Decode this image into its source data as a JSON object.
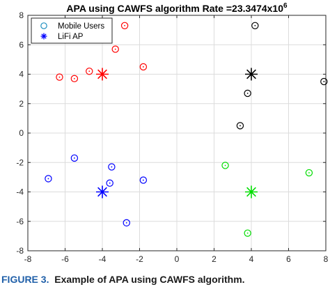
{
  "chart_data": {
    "type": "scatter",
    "title": "APA using CAWFS algorithm Rate =23.3474x10",
    "title_superscript": "6",
    "xlabel": "",
    "ylabel": "",
    "xlim": [
      -8,
      8
    ],
    "ylim": [
      -8,
      8
    ],
    "xticks": [
      -8,
      -6,
      -4,
      -2,
      0,
      2,
      4,
      6,
      8
    ],
    "yticks": [
      -8,
      -6,
      -4,
      -2,
      0,
      2,
      4,
      6,
      8
    ],
    "grid": true,
    "legend_position": "top-left",
    "legend": [
      {
        "label": "Mobile Users",
        "marker": "circle",
        "color": "#1f8fbf"
      },
      {
        "label": "LiFi AP",
        "marker": "asterisk",
        "color": "#0000ff"
      }
    ],
    "series": [
      {
        "color": "#ff0000",
        "ap": {
          "x": -4,
          "y": 4
        },
        "users": [
          {
            "x": -2.8,
            "y": 7.3
          },
          {
            "x": -3.3,
            "y": 5.7
          },
          {
            "x": -1.8,
            "y": 4.5
          },
          {
            "x": -4.7,
            "y": 4.2
          },
          {
            "x": -6.3,
            "y": 3.8
          },
          {
            "x": -5.5,
            "y": 3.7
          }
        ]
      },
      {
        "color": "#000000",
        "ap": {
          "x": 4,
          "y": 4
        },
        "users": [
          {
            "x": 4.2,
            "y": 7.3
          },
          {
            "x": 7.9,
            "y": 3.5
          },
          {
            "x": 3.8,
            "y": 2.7
          },
          {
            "x": 3.4,
            "y": 0.5
          }
        ]
      },
      {
        "color": "#0000ff",
        "ap": {
          "x": -4,
          "y": -4
        },
        "users": [
          {
            "x": -5.5,
            "y": -1.7
          },
          {
            "x": -3.5,
            "y": -2.3
          },
          {
            "x": -6.9,
            "y": -3.1
          },
          {
            "x": -3.6,
            "y": -3.4
          },
          {
            "x": -1.8,
            "y": -3.2
          },
          {
            "x": -2.7,
            "y": -6.1
          }
        ]
      },
      {
        "color": "#00dd00",
        "ap": {
          "x": 4,
          "y": -4
        },
        "users": [
          {
            "x": 2.6,
            "y": -2.2
          },
          {
            "x": 7.1,
            "y": -2.7
          },
          {
            "x": 3.8,
            "y": -6.8
          }
        ]
      }
    ]
  },
  "caption": {
    "label": "FIGURE 3.",
    "text": "Example of APA using CAWFS algorithm."
  }
}
